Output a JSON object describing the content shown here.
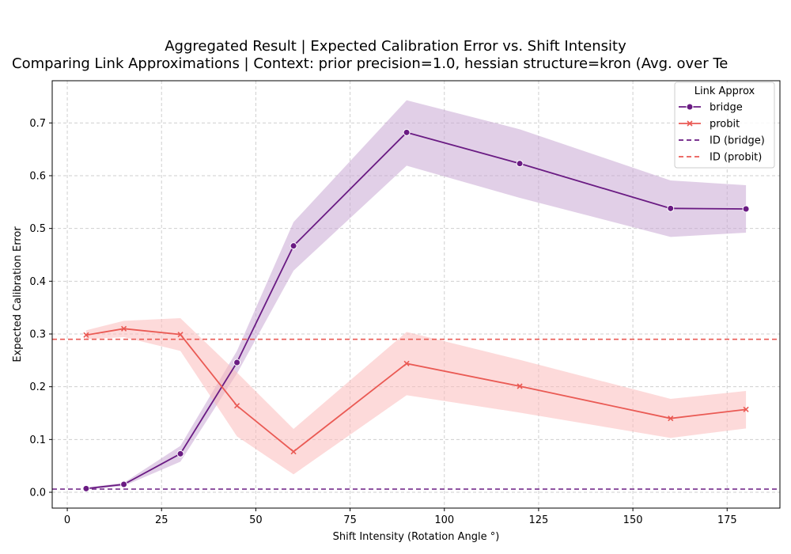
{
  "chart_data": {
    "type": "line",
    "title": "Aggregated Result | Expected Calibration Error vs. Shift Intensity",
    "subtitle": "Comparing Link Approximations | Context: prior precision=1.0, hessian structure=kron (Avg. over Te",
    "xlabel": "Shift Intensity (Rotation Angle °)",
    "ylabel": "Expected Calibration Error",
    "xlim": [
      -4,
      189
    ],
    "ylim": [
      -0.03,
      0.78
    ],
    "xticks": [
      0,
      25,
      50,
      75,
      100,
      125,
      150,
      175
    ],
    "yticks": [
      0.0,
      0.1,
      0.2,
      0.3,
      0.4,
      0.5,
      0.6,
      0.7
    ],
    "grid": true,
    "legend": {
      "title": "Link Approx",
      "placement": "top-right"
    },
    "x": [
      5,
      15,
      30,
      45,
      60,
      90,
      120,
      160,
      180
    ],
    "series": [
      {
        "name": "bridge",
        "color": "#6a1b83",
        "marker": "circle",
        "values": [
          0.007,
          0.015,
          0.073,
          0.246,
          0.467,
          0.682,
          0.623,
          0.538,
          0.537
        ],
        "lower": [
          0.005,
          0.012,
          0.058,
          0.225,
          0.42,
          0.619,
          0.558,
          0.484,
          0.492
        ],
        "upper": [
          0.009,
          0.018,
          0.088,
          0.268,
          0.512,
          0.743,
          0.688,
          0.591,
          0.582
        ]
      },
      {
        "name": "probit",
        "color": "#ea5a54",
        "marker": "x",
        "values": [
          0.298,
          0.31,
          0.299,
          0.164,
          0.077,
          0.244,
          0.201,
          0.14,
          0.157
        ],
        "lower": [
          0.29,
          0.294,
          0.268,
          0.106,
          0.034,
          0.184,
          0.151,
          0.103,
          0.121
        ],
        "upper": [
          0.307,
          0.325,
          0.33,
          0.227,
          0.12,
          0.304,
          0.251,
          0.177,
          0.192
        ]
      }
    ],
    "reference_lines": [
      {
        "name": "ID (bridge)",
        "y": 0.006,
        "color": "#6a1b83",
        "style": "dashed"
      },
      {
        "name": "ID (probit)",
        "y": 0.29,
        "color": "#ea5a54",
        "style": "dashed"
      }
    ],
    "band_colors": {
      "bridge": "#c8a8d4",
      "probit": "#fbbcbb"
    }
  }
}
